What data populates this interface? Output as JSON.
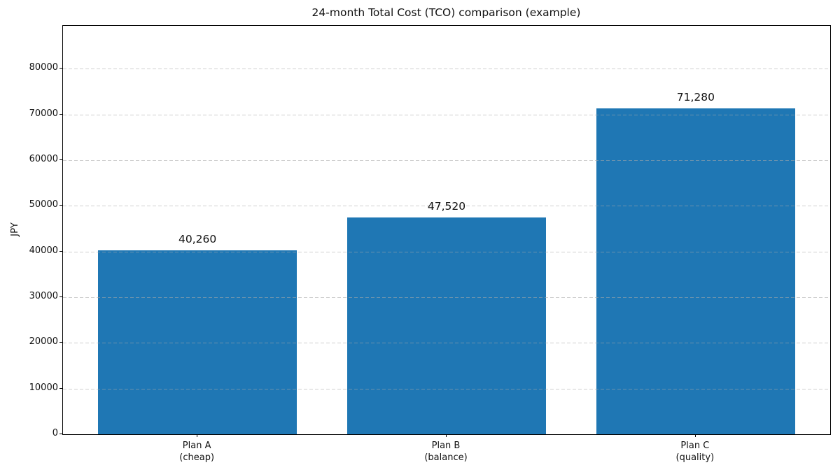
{
  "chart_data": {
    "type": "bar",
    "title": "24-month Total Cost (TCO) comparison (example)",
    "xlabel": "",
    "ylabel": "JPY",
    "categories": [
      "Plan A\n(cheap)",
      "Plan B\n(balance)",
      "Plan C\n(quality)"
    ],
    "values": [
      40260,
      47520,
      71280
    ],
    "value_labels": [
      "40,260",
      "47,520",
      "71,280"
    ],
    "yticks": [
      0,
      10000,
      20000,
      30000,
      40000,
      50000,
      60000,
      70000,
      80000
    ],
    "ylim": [
      0,
      89400
    ],
    "bar_color": "#1f77b4",
    "grid": "horizontal-dashed",
    "legend": "none",
    "background": "#ffffff"
  }
}
